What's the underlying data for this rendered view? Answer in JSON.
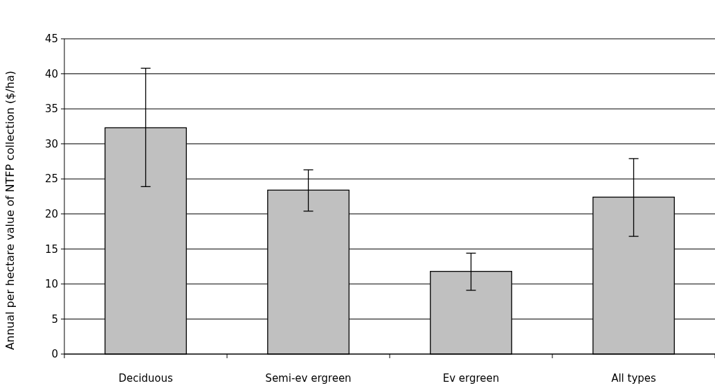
{
  "chart_data": {
    "type": "bar",
    "ylabel": "Annual per hectare value of NTFP collection ($/ha)",
    "categories": [
      "Deciduous",
      "Semi-ev ergreen",
      "Ev ergreen",
      "All types"
    ],
    "values": [
      32.3,
      23.4,
      11.8,
      22.4
    ],
    "color": "#c0c0c0",
    "errors": [
      [
        23.9,
        40.8
      ],
      [
        20.4,
        26.3
      ],
      [
        9.1,
        14.4
      ],
      [
        16.8,
        27.9
      ]
    ],
    "ylim": [
      0,
      45
    ],
    "yticks": [
      0,
      5,
      10,
      15,
      20,
      25,
      30,
      35,
      40,
      45
    ],
    "grid": "y"
  }
}
